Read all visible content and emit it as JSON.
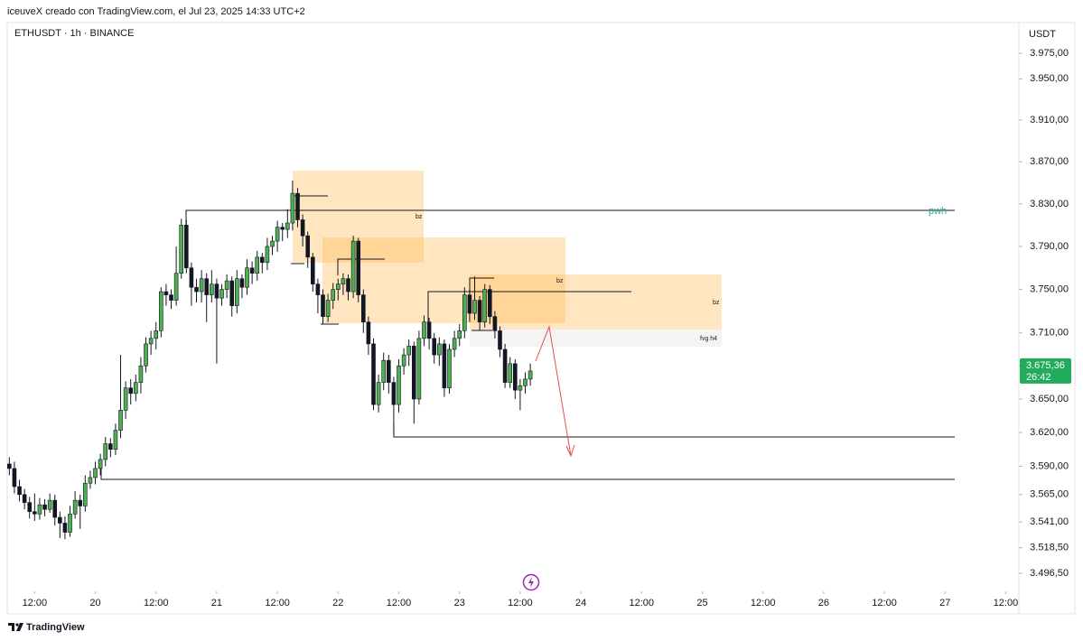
{
  "header": {
    "caption": "iceuveX creado con TradingView.com, el Jul 23, 2025 14:33 UTC+2",
    "symbol": "ETHUSDT · 1h · BINANCE",
    "currency": "USDT"
  },
  "chart_data": {
    "type": "candlestick",
    "log_scale": true,
    "up_color": "#4caf50",
    "down_color": "#131722",
    "border_color": "#131722",
    "x": [
      "2025-07-19T07:00",
      "2025-07-19T08:00",
      "2025-07-19T09:00",
      "2025-07-19T10:00",
      "2025-07-19T11:00",
      "2025-07-19T12:00",
      "2025-07-19T13:00",
      "2025-07-19T14:00",
      "2025-07-19T15:00",
      "2025-07-19T16:00",
      "2025-07-19T17:00",
      "2025-07-19T18:00",
      "2025-07-19T19:00",
      "2025-07-19T20:00",
      "2025-07-19T21:00",
      "2025-07-19T22:00",
      "2025-07-19T23:00",
      "2025-07-20T00:00",
      "2025-07-20T01:00",
      "2025-07-20T02:00",
      "2025-07-20T03:00",
      "2025-07-20T04:00",
      "2025-07-20T05:00",
      "2025-07-20T06:00",
      "2025-07-20T07:00",
      "2025-07-20T08:00",
      "2025-07-20T09:00",
      "2025-07-20T10:00",
      "2025-07-20T11:00",
      "2025-07-20T12:00",
      "2025-07-20T13:00",
      "2025-07-20T14:00",
      "2025-07-20T15:00",
      "2025-07-20T16:00",
      "2025-07-20T17:00",
      "2025-07-20T18:00",
      "2025-07-20T19:00",
      "2025-07-20T20:00",
      "2025-07-20T21:00",
      "2025-07-20T22:00",
      "2025-07-20T23:00",
      "2025-07-21T00:00",
      "2025-07-21T01:00",
      "2025-07-21T02:00",
      "2025-07-21T03:00",
      "2025-07-21T04:00",
      "2025-07-21T05:00",
      "2025-07-21T06:00",
      "2025-07-21T07:00",
      "2025-07-21T08:00",
      "2025-07-21T09:00",
      "2025-07-21T10:00",
      "2025-07-21T11:00",
      "2025-07-21T12:00",
      "2025-07-21T13:00",
      "2025-07-21T14:00",
      "2025-07-21T15:00",
      "2025-07-21T16:00",
      "2025-07-21T17:00",
      "2025-07-21T18:00",
      "2025-07-21T19:00",
      "2025-07-21T20:00",
      "2025-07-21T21:00",
      "2025-07-21T22:00",
      "2025-07-21T23:00",
      "2025-07-22T00:00",
      "2025-07-22T01:00",
      "2025-07-22T02:00",
      "2025-07-22T03:00",
      "2025-07-22T04:00",
      "2025-07-22T05:00",
      "2025-07-22T06:00",
      "2025-07-22T07:00",
      "2025-07-22T08:00",
      "2025-07-22T09:00",
      "2025-07-22T10:00",
      "2025-07-22T11:00",
      "2025-07-22T12:00",
      "2025-07-22T13:00",
      "2025-07-22T14:00",
      "2025-07-22T15:00",
      "2025-07-22T16:00",
      "2025-07-22T17:00",
      "2025-07-22T18:00",
      "2025-07-22T19:00",
      "2025-07-22T20:00",
      "2025-07-22T21:00",
      "2025-07-22T22:00",
      "2025-07-22T23:00",
      "2025-07-23T00:00",
      "2025-07-23T01:00",
      "2025-07-23T02:00",
      "2025-07-23T03:00",
      "2025-07-23T04:00",
      "2025-07-23T05:00",
      "2025-07-23T06:00",
      "2025-07-23T07:00",
      "2025-07-23T08:00",
      "2025-07-23T09:00",
      "2025-07-23T10:00",
      "2025-07-23T11:00",
      "2025-07-23T12:00",
      "2025-07-23T13:00",
      "2025-07-23T14:00"
    ],
    "open": [
      3592,
      3588,
      3572,
      3565,
      3558,
      3550,
      3548,
      3556,
      3552,
      3560,
      3545,
      3540,
      3532,
      3548,
      3560,
      3555,
      3575,
      3580,
      3588,
      3596,
      3610,
      3605,
      3622,
      3640,
      3660,
      3655,
      3665,
      3680,
      3700,
      3705,
      3712,
      3748,
      3745,
      3740,
      3765,
      3810,
      3770,
      3752,
      3748,
      3760,
      3745,
      3755,
      3742,
      3750,
      3758,
      3735,
      3760,
      3752,
      3770,
      3765,
      3780,
      3775,
      3790,
      3795,
      3808,
      3806,
      3812,
      3840,
      3815,
      3800,
      3780,
      3755,
      3745,
      3725,
      3740,
      3750,
      3755,
      3760,
      3748,
      3795,
      3745,
      3720,
      3700,
      3645,
      3665,
      3685,
      3665,
      3645,
      3680,
      3690,
      3698,
      3650,
      3705,
      3720,
      3705,
      3690,
      3700,
      3660,
      3695,
      3705,
      3712,
      3745,
      3728,
      3740,
      3720,
      3750,
      3725,
      3712,
      3695,
      3665,
      3682,
      3658,
      3662,
      3668
    ],
    "high": [
      3598,
      3594,
      3578,
      3570,
      3563,
      3566,
      3562,
      3561,
      3566,
      3565,
      3550,
      3546,
      3555,
      3568,
      3565,
      3582,
      3586,
      3594,
      3601,
      3616,
      3615,
      3628,
      3690,
      3666,
      3668,
      3672,
      3688,
      3706,
      3712,
      3720,
      3752,
      3755,
      3750,
      3790,
      3816,
      3815,
      3775,
      3760,
      3768,
      3765,
      3768,
      3760,
      3755,
      3764,
      3762,
      3768,
      3764,
      3778,
      3776,
      3786,
      3784,
      3798,
      3800,
      3814,
      3812,
      3825,
      3852,
      3845,
      3820,
      3804,
      3784,
      3760,
      3750,
      3746,
      3756,
      3760,
      3765,
      3764,
      3800,
      3798,
      3750,
      3725,
      3705,
      3672,
      3692,
      3690,
      3670,
      3686,
      3696,
      3704,
      3702,
      3712,
      3726,
      3724,
      3710,
      3706,
      3704,
      3700,
      3712,
      3718,
      3752,
      3750,
      3762,
      3744,
      3755,
      3754,
      3730,
      3716,
      3700,
      3688,
      3686,
      3668,
      3674,
      3682
    ],
    "low": [
      3582,
      3566,
      3559,
      3552,
      3544,
      3542,
      3543,
      3546,
      3549,
      3538,
      3527,
      3526,
      3528,
      3544,
      3535,
      3550,
      3570,
      3574,
      3582,
      3590,
      3598,
      3600,
      3615,
      3632,
      3645,
      3648,
      3655,
      3674,
      3690,
      3695,
      3706,
      3735,
      3732,
      3735,
      3760,
      3765,
      3735,
      3738,
      3738,
      3720,
      3738,
      3682,
      3735,
      3742,
      3725,
      3728,
      3742,
      3745,
      3755,
      3758,
      3765,
      3768,
      3782,
      3785,
      3795,
      3798,
      3805,
      3808,
      3790,
      3770,
      3748,
      3728,
      3718,
      3720,
      3732,
      3740,
      3745,
      3740,
      3742,
      3738,
      3710,
      3690,
      3640,
      3638,
      3658,
      3655,
      3618,
      3638,
      3672,
      3680,
      3628,
      3645,
      3698,
      3695,
      3682,
      3680,
      3652,
      3655,
      3688,
      3698,
      3705,
      3720,
      3722,
      3712,
      3715,
      3718,
      3705,
      3688,
      3660,
      3660,
      3650,
      3640,
      3655,
      3662
    ],
    "close": [
      3588,
      3572,
      3565,
      3558,
      3550,
      3548,
      3556,
      3552,
      3560,
      3545,
      3540,
      3532,
      3548,
      3560,
      3555,
      3575,
      3580,
      3588,
      3596,
      3610,
      3605,
      3622,
      3640,
      3660,
      3655,
      3665,
      3680,
      3700,
      3705,
      3712,
      3748,
      3745,
      3740,
      3765,
      3810,
      3770,
      3752,
      3748,
      3760,
      3745,
      3755,
      3742,
      3750,
      3758,
      3735,
      3760,
      3752,
      3770,
      3765,
      3780,
      3775,
      3790,
      3795,
      3808,
      3806,
      3812,
      3840,
      3815,
      3800,
      3780,
      3755,
      3745,
      3725,
      3740,
      3750,
      3755,
      3760,
      3748,
      3795,
      3745,
      3720,
      3700,
      3645,
      3665,
      3685,
      3665,
      3645,
      3680,
      3690,
      3698,
      3650,
      3705,
      3720,
      3705,
      3690,
      3700,
      3660,
      3695,
      3705,
      3712,
      3745,
      3728,
      3740,
      3720,
      3750,
      3725,
      3712,
      3695,
      3665,
      3682,
      3658,
      3662,
      3668,
      3675.36
    ],
    "xlim": [
      "2025-07-19T06:35",
      "2025-07-27T13:10"
    ],
    "xticks": [
      {
        "value": "2025-07-19T12:00",
        "label": "12:00"
      },
      {
        "value": "2025-07-20T00:00",
        "label": "20"
      },
      {
        "value": "2025-07-20T12:00",
        "label": "12:00"
      },
      {
        "value": "2025-07-21T00:00",
        "label": "21"
      },
      {
        "value": "2025-07-21T12:00",
        "label": "12:00"
      },
      {
        "value": "2025-07-22T00:00",
        "label": "22"
      },
      {
        "value": "2025-07-22T12:00",
        "label": "12:00"
      },
      {
        "value": "2025-07-23T00:00",
        "label": "23"
      },
      {
        "value": "2025-07-23T12:00",
        "label": "12:00"
      },
      {
        "value": "2025-07-24T00:00",
        "label": "24"
      },
      {
        "value": "2025-07-24T12:00",
        "label": "12:00"
      },
      {
        "value": "2025-07-25T00:00",
        "label": "25"
      },
      {
        "value": "2025-07-25T12:00",
        "label": "12:00"
      },
      {
        "value": "2025-07-26T00:00",
        "label": "26"
      },
      {
        "value": "2025-07-26T12:00",
        "label": "12:00"
      },
      {
        "value": "2025-07-27T00:00",
        "label": "27"
      },
      {
        "value": "2025-07-27T12:00",
        "label": "12:00"
      }
    ],
    "ylim": [
      3480.9,
      4005.2
    ],
    "yticks": [
      {
        "value": 3975,
        "label": "3.975,00"
      },
      {
        "value": 3950,
        "label": "3.950,00"
      },
      {
        "value": 3910,
        "label": "3.910,00"
      },
      {
        "value": 3870,
        "label": "3.870,00"
      },
      {
        "value": 3830,
        "label": "3.830,00"
      },
      {
        "value": 3790,
        "label": "3.790,00"
      },
      {
        "value": 3750,
        "label": "3.750,00"
      },
      {
        "value": 3710,
        "label": "3.710,00"
      },
      {
        "value": 3680,
        "label": "3.680,00"
      },
      {
        "value": 3650,
        "label": "3.650,00"
      },
      {
        "value": 3620,
        "label": "3.620,00"
      },
      {
        "value": 3590,
        "label": "3.590,00"
      },
      {
        "value": 3565,
        "label": "3.565,00"
      },
      {
        "value": 3541,
        "label": "3.541,00"
      },
      {
        "value": 3518.5,
        "label": "3.518,50"
      },
      {
        "value": 3496.5,
        "label": "3.496,50"
      }
    ],
    "last_price": {
      "value": 3675.36,
      "label": "3.675,36",
      "countdown": "26:42",
      "color": "#22ab5a"
    }
  },
  "annotations": [
    "bz",
    "bz",
    "bz",
    "fvg h4",
    "pwh"
  ],
  "footer": {
    "brand": "TradingView"
  }
}
